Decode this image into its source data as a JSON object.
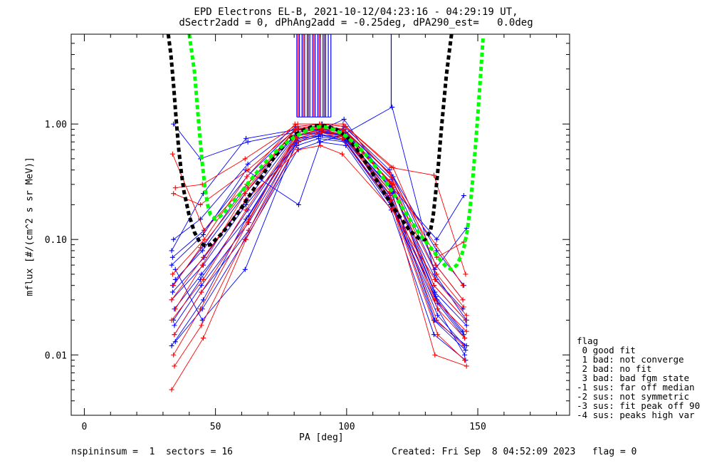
{
  "title_line1": "EPD Electrons EL-B, 2021-10-12/04:23:16 - 04:29:19 UT,",
  "title_line2": "dSectr2add = 0, dPhAng2add = -0.25deg, dPA290_est=   0.0deg",
  "footer": {
    "left": "nspininsum =  1  sectors = 16",
    "right": "Created: Fri Sep  8 04:52:09 2023   flag = 0"
  },
  "legend": {
    "header": "flag",
    "items": [
      " 0 good fit",
      " 1 bad: not converge",
      " 2 bad: no fit",
      " 3 bad: bad fgm state",
      "-1 sus: far off median",
      "-2 sus: not symmetric",
      "-3 sus: fit peak off 90",
      "-4 sus: peaks high var"
    ]
  },
  "colors": {
    "series_a": "#0000ff",
    "series_b": "#ff0000",
    "fit_black": "#000000",
    "fit_green": "#00ff00",
    "axes": "#000000"
  },
  "chart_data": {
    "type": "line",
    "xlabel": "PA [deg]",
    "ylabel": "mflux [#/(cm^2 s sr MeV)]",
    "xlim": [
      -5,
      185
    ],
    "ylim": [
      0.003,
      6.0
    ],
    "yscale": "log",
    "x_ticks": [
      0,
      50,
      100,
      150
    ],
    "x_tick_labels": [
      "0",
      "50",
      "100",
      "150"
    ],
    "y_ticks": [
      0.01,
      0.1,
      1.0
    ],
    "y_tick_labels": [
      "0.01",
      "0.10",
      "1.00"
    ],
    "grid": false,
    "legend_position": "right",
    "sample_pa": [
      34,
      45,
      62,
      81,
      90,
      99,
      117,
      134,
      145
    ],
    "blue_curves": [
      [
        0.012,
        0.03,
        0.15,
        0.8,
        0.85,
        0.8,
        0.25,
        0.02,
        0.012
      ],
      [
        0.02,
        0.045,
        0.18,
        0.75,
        0.8,
        0.72,
        0.22,
        0.03,
        0.015
      ],
      [
        0.045,
        0.08,
        0.25,
        0.85,
        0.9,
        0.85,
        0.3,
        0.04,
        0.02
      ],
      [
        0.07,
        0.12,
        0.35,
        0.9,
        0.95,
        0.9,
        0.35,
        0.06,
        0.03
      ],
      [
        0.015,
        0.035,
        0.12,
        0.65,
        0.75,
        0.7,
        0.2,
        0.025,
        0.01
      ],
      [
        0.03,
        0.06,
        0.2,
        0.7,
        0.8,
        0.78,
        0.28,
        0.035,
        0.018
      ],
      [
        0.1,
        0.15,
        0.45,
        0.95,
        1.0,
        0.95,
        0.4,
        0.08,
        0.04
      ],
      [
        0.013,
        0.025,
        0.1,
        0.6,
        0.7,
        0.65,
        0.18,
        0.015,
        0.009
      ],
      [
        0.04,
        0.09,
        0.3,
        0.8,
        0.88,
        0.82,
        0.26,
        0.045,
        0.025
      ],
      [
        0.025,
        0.05,
        0.16,
        0.72,
        0.82,
        0.74,
        0.24,
        0.028,
        0.014
      ],
      [
        0.06,
        0.11,
        0.4,
        0.2,
        0.7,
        0.8,
        1.4,
        0.05,
        0.02
      ],
      [
        1.0,
        0.5,
        0.7,
        0.85,
        0.9,
        1.1,
        0.3,
        0.1,
        0.24
      ],
      [
        0.055,
        0.02,
        0.055,
        0.75,
        0.85,
        0.8,
        0.22,
        0.02,
        0.011
      ],
      [
        0.035,
        0.07,
        0.22,
        0.78,
        0.86,
        0.8,
        0.27,
        0.032,
        0.016
      ],
      [
        0.018,
        0.04,
        0.14,
        0.7,
        0.78,
        0.72,
        0.21,
        0.022,
        0.012
      ],
      [
        0.08,
        0.25,
        0.75,
        0.9,
        0.95,
        0.88,
        0.33,
        0.055,
        0.125
      ]
    ],
    "red_curves": [
      [
        0.005,
        0.014,
        0.1,
        0.7,
        0.85,
        0.75,
        0.2,
        0.01,
        0.008
      ],
      [
        0.01,
        0.025,
        0.14,
        0.8,
        0.9,
        0.8,
        0.25,
        0.02,
        0.012
      ],
      [
        0.025,
        0.06,
        0.25,
        0.95,
        1.0,
        0.95,
        0.35,
        0.04,
        0.02
      ],
      [
        0.05,
        0.1,
        0.35,
        1.0,
        1.0,
        1.0,
        0.42,
        0.06,
        0.03
      ],
      [
        0.008,
        0.018,
        0.12,
        0.75,
        0.85,
        0.78,
        0.22,
        0.015,
        0.009
      ],
      [
        0.02,
        0.045,
        0.18,
        0.85,
        0.92,
        0.85,
        0.3,
        0.03,
        0.016
      ],
      [
        0.25,
        0.2,
        0.4,
        0.9,
        0.95,
        0.9,
        0.38,
        0.07,
        0.095
      ],
      [
        0.28,
        0.3,
        0.5,
        1.0,
        1.0,
        0.95,
        0.42,
        0.36,
        0.05
      ],
      [
        0.55,
        0.12,
        0.3,
        0.88,
        0.92,
        0.85,
        0.3,
        0.09,
        0.04
      ],
      [
        0.015,
        0.035,
        0.15,
        0.78,
        0.88,
        0.8,
        0.26,
        0.025,
        0.014
      ],
      [
        0.03,
        0.07,
        0.22,
        0.6,
        0.65,
        0.55,
        0.18,
        0.045,
        0.022
      ],
      [
        0.04,
        0.085,
        0.28,
        0.92,
        0.97,
        0.9,
        0.32,
        0.05,
        0.026
      ]
    ],
    "black_fit": {
      "x": [
        32,
        33,
        34,
        35,
        36,
        37,
        38,
        40,
        42,
        44,
        46,
        48,
        52,
        56,
        60,
        64,
        68,
        72,
        76,
        80,
        84,
        88,
        90,
        92,
        96,
        100,
        104,
        108,
        112,
        116,
        120,
        124,
        128,
        130,
        132,
        133,
        134,
        135,
        136,
        137,
        138,
        139,
        140
      ],
      "y": [
        6.0,
        4.0,
        2.2,
        1.1,
        0.6,
        0.38,
        0.26,
        0.16,
        0.115,
        0.095,
        0.088,
        0.09,
        0.11,
        0.14,
        0.19,
        0.26,
        0.36,
        0.5,
        0.65,
        0.8,
        0.9,
        0.96,
        0.97,
        0.96,
        0.9,
        0.78,
        0.6,
        0.44,
        0.31,
        0.22,
        0.16,
        0.12,
        0.1,
        0.1,
        0.12,
        0.16,
        0.26,
        0.45,
        0.85,
        1.5,
        2.6,
        4.0,
        6.0
      ]
    },
    "green_fit": {
      "x": [
        40,
        42,
        43,
        44,
        45,
        46,
        47,
        48,
        50,
        52,
        56,
        60,
        64,
        68,
        72,
        76,
        80,
        84,
        88,
        90,
        92,
        96,
        100,
        104,
        108,
        112,
        116,
        120,
        124,
        128,
        132,
        136,
        138,
        140,
        142,
        144,
        145,
        146,
        147,
        148,
        149,
        150,
        151,
        152
      ],
      "y": [
        6.0,
        2.8,
        1.5,
        0.8,
        0.45,
        0.28,
        0.2,
        0.165,
        0.15,
        0.16,
        0.2,
        0.26,
        0.34,
        0.44,
        0.55,
        0.66,
        0.77,
        0.86,
        0.93,
        0.95,
        0.94,
        0.88,
        0.78,
        0.65,
        0.52,
        0.4,
        0.29,
        0.21,
        0.15,
        0.11,
        0.085,
        0.065,
        0.058,
        0.055,
        0.06,
        0.075,
        0.09,
        0.12,
        0.18,
        0.32,
        0.6,
        1.2,
        2.5,
        5.5
      ]
    },
    "blue_spikes_pa": [
      81,
      82,
      83,
      84,
      85,
      86,
      87,
      88,
      89,
      90,
      91,
      92,
      93,
      94,
      117
    ],
    "red_spikes_pa": [
      81.5,
      83.5,
      85.5,
      87.5,
      89.5,
      91.5
    ]
  }
}
